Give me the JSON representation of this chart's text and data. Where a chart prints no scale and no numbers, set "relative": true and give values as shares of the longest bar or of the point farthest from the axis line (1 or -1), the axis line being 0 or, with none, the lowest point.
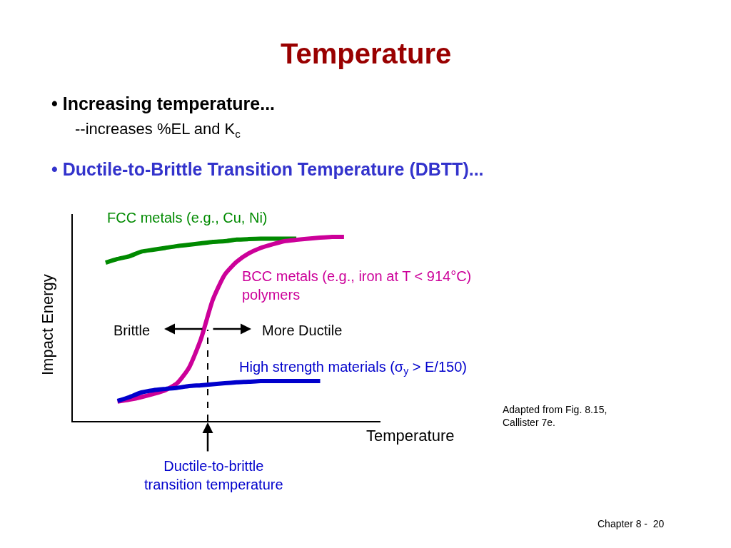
{
  "chart_data": {
    "type": "line",
    "relative": true,
    "title": "Temperature",
    "subtitle": "• Increasing temperature...\n--increases %EL and K$_{c}$\n• Ductile-to-Brittle Transition Temperature (DBTT)...",
    "xlabel": "Temperature",
    "ylabel": "Impact Energy",
    "categories": [
      null,
      null,
      null,
      null,
      null,
      null,
      null,
      null,
      null,
      null,
      null,
      null,
      null,
      null,
      null,
      null,
      null,
      null,
      null,
      null,
      null
    ],
    "series": [
      {
        "name": "FCC metals (e.g., Cu, Ni)",
        "color": "#008a00",
        "values": [
          0.86,
          0.88,
          0.895,
          0.92,
          0.93,
          0.94,
          0.95,
          0.957,
          0.965,
          0.973,
          0.977,
          0.985,
          0.988,
          0.99,
          0.99,
          0.99,
          0.99,
          null,
          null,
          null,
          null
        ]
      },
      {
        "name": "BCC metals (e.g., iron at T < 914°C)\npolymers",
        "color": "#cc0099",
        "values": [
          null,
          0.105,
          0.116,
          0.13,
          0.147,
          0.167,
          0.205,
          0.29,
          0.446,
          0.66,
          0.795,
          0.865,
          0.91,
          0.94,
          0.96,
          0.977,
          0.984,
          0.99,
          0.996,
          1.0,
          1.0
        ]
      },
      {
        "name": "High strength materials (σ$_{y}$ > E/150)",
        "color": "#0000cc",
        "values": [
          null,
          0.109,
          0.13,
          0.155,
          0.167,
          0.174,
          0.18,
          0.19,
          0.194,
          0.2,
          0.205,
          0.21,
          0.213,
          0.217,
          0.217,
          0.217,
          0.217,
          0.217,
          0.217,
          null,
          null
        ]
      }
    ],
    "annotations": [
      "Brittle",
      "More Ductile",
      "Adapted from Fig. 8.15,\nCallister 7e.",
      "Chapter 8 -  20",
      "Ductile-to-brittle\ntransition temperature"
    ],
    "legend": false
  }
}
